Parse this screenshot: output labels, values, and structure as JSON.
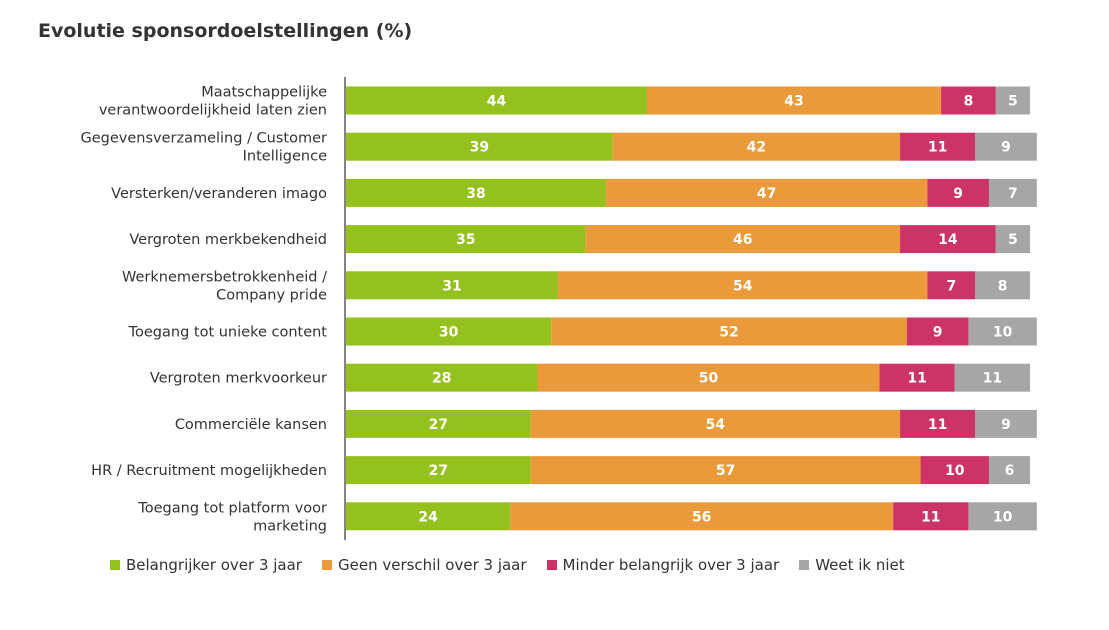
{
  "chart_data": {
    "type": "bar",
    "orientation": "horizontal",
    "stacked": true,
    "title": "Evolutie sponsordoelstellingen (%)",
    "categories": [
      "Maatschappelijke verantwoordelijkheid laten zien",
      "Gegevensverzameling / Customer Intelligence",
      "Versterken/veranderen imago",
      "Vergroten merkbekendheid",
      "Werknemersbetrokkenheid / Company pride",
      "Toegang tot unieke content",
      "Vergroten merkvoorkeur",
      "Commerciële kansen",
      "HR / Recruitment mogelijkheden",
      "Toegang tot platform voor marketing"
    ],
    "category_lines": [
      [
        "Maatschappelijke",
        "verantwoordelijkheid laten zien"
      ],
      [
        "Gegevensverzameling / Customer",
        "Intelligence"
      ],
      [
        "Versterken/veranderen imago"
      ],
      [
        "Vergroten merkbekendheid"
      ],
      [
        "Werknemersbetrokkenheid /",
        "Company pride"
      ],
      [
        "Toegang tot unieke content"
      ],
      [
        "Vergroten merkvoorkeur"
      ],
      [
        "Commerciële kansen"
      ],
      [
        "HR / Recruitment mogelijkheden"
      ],
      [
        "Toegang tot platform voor",
        "marketing"
      ]
    ],
    "series": [
      {
        "name": "Belangrijker over 3 jaar",
        "color": "#95c11f",
        "values": [
          44,
          39,
          38,
          35,
          31,
          30,
          28,
          27,
          27,
          24
        ]
      },
      {
        "name": "Geen verschil over 3 jaar",
        "color": "#ea9a3a",
        "values": [
          43,
          42,
          47,
          46,
          54,
          52,
          50,
          54,
          57,
          56
        ]
      },
      {
        "name": "Minder belangrijk over 3 jaar",
        "color": "#cc3366",
        "values": [
          8,
          11,
          9,
          14,
          7,
          9,
          11,
          11,
          10,
          11
        ]
      },
      {
        "name": "Weet ik niet",
        "color": "#a6a6a6",
        "values": [
          5,
          9,
          7,
          5,
          8,
          10,
          11,
          9,
          6,
          10
        ]
      }
    ],
    "xlim": [
      0,
      100
    ],
    "legend_position": "bottom"
  }
}
